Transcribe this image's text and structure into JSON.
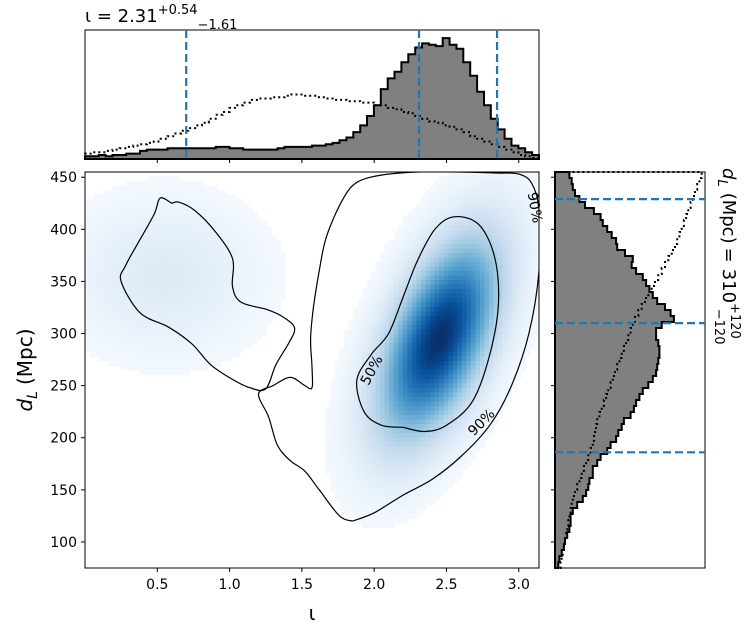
{
  "chart_data": {
    "type": "heatmap",
    "title": "",
    "xlabel": "ι",
    "ylabel_var": "d",
    "ylabel_sub": "L",
    "ylabel_unit": "(Mpc)",
    "xlim": [
      0.0,
      3.14
    ],
    "ylim": [
      75,
      455
    ],
    "xticks": [
      "0.5",
      "1.0",
      "1.5",
      "2.0",
      "2.5",
      "3.0"
    ],
    "xtick_values": [
      0.5,
      1.0,
      1.5,
      2.0,
      2.5,
      3.0
    ],
    "yticks": [
      "100",
      "150",
      "200",
      "250",
      "300",
      "350",
      "400",
      "450"
    ],
    "ytick_values": [
      100,
      150,
      200,
      250,
      300,
      350,
      400,
      450
    ],
    "colormap": "Blues",
    "density_peaks": [
      {
        "x": 2.45,
        "y": 295,
        "sx": 0.26,
        "sy": 60,
        "rho": 0.55,
        "w": 1.0
      },
      {
        "x": 0.55,
        "y": 355,
        "sx": 0.4,
        "sy": 45,
        "rho": 0.0,
        "w": 0.09
      }
    ],
    "contours": [
      {
        "label": "50%",
        "label_pos": [
          1.98,
          265
        ],
        "points": [
          [
            2.2,
            210
          ],
          [
            2.05,
            212
          ],
          [
            1.93,
            225
          ],
          [
            1.88,
            255
          ],
          [
            1.98,
            280
          ],
          [
            2.1,
            300
          ],
          [
            2.2,
            335
          ],
          [
            2.3,
            370
          ],
          [
            2.42,
            400
          ],
          [
            2.55,
            412
          ],
          [
            2.72,
            405
          ],
          [
            2.83,
            375
          ],
          [
            2.86,
            330
          ],
          [
            2.8,
            280
          ],
          [
            2.68,
            235
          ],
          [
            2.5,
            212
          ],
          [
            2.35,
            206
          ],
          [
            2.2,
            210
          ]
        ]
      },
      {
        "label": "90%",
        "label_pos": [
          2.74,
          215
        ],
        "points": [
          [
            1.85,
            120
          ],
          [
            1.76,
            125
          ],
          [
            1.62,
            150
          ],
          [
            1.52,
            168
          ],
          [
            1.42,
            178
          ],
          [
            1.33,
            193
          ],
          [
            1.27,
            220
          ],
          [
            1.2,
            242
          ],
          [
            1.3,
            250
          ],
          [
            1.42,
            258
          ],
          [
            1.52,
            250
          ],
          [
            1.57,
            248
          ],
          [
            1.57,
            268
          ],
          [
            1.56,
            295
          ],
          [
            1.58,
            325
          ],
          [
            1.62,
            360
          ],
          [
            1.67,
            393
          ],
          [
            1.78,
            428
          ],
          [
            1.88,
            445
          ],
          [
            2.05,
            452
          ],
          [
            2.3,
            455
          ],
          [
            2.6,
            455
          ],
          [
            2.85,
            454
          ],
          [
            3.0,
            453
          ],
          [
            3.09,
            444
          ],
          [
            3.14,
            418
          ],
          [
            3.14,
            360
          ],
          [
            3.07,
            300
          ],
          [
            2.95,
            250
          ],
          [
            2.8,
            212
          ],
          [
            2.6,
            182
          ],
          [
            2.4,
            160
          ],
          [
            2.2,
            145
          ],
          [
            2.0,
            128
          ],
          [
            1.85,
            120
          ]
        ]
      },
      {
        "label": "",
        "points": [
          [
            0.6,
            425
          ],
          [
            0.52,
            430
          ],
          [
            0.48,
            415
          ],
          [
            0.38,
            390
          ],
          [
            0.28,
            365
          ],
          [
            0.25,
            350
          ],
          [
            0.38,
            320
          ],
          [
            0.58,
            306
          ],
          [
            0.74,
            290
          ],
          [
            0.87,
            270
          ],
          [
            1.02,
            256
          ],
          [
            1.14,
            248
          ],
          [
            1.25,
            247
          ],
          [
            1.32,
            270
          ],
          [
            1.41,
            291
          ],
          [
            1.45,
            305
          ],
          [
            1.38,
            315
          ],
          [
            1.26,
            323
          ],
          [
            1.08,
            330
          ],
          [
            1.02,
            345
          ],
          [
            1.02,
            372
          ],
          [
            0.9,
            398
          ],
          [
            0.76,
            418
          ],
          [
            0.65,
            426
          ],
          [
            0.6,
            425
          ]
        ]
      }
    ],
    "top_hist": {
      "label": "ι = 2.31",
      "median": "2.31",
      "plus": "+0.54",
      "minus": "−1.61",
      "quantile_lines": [
        0.7,
        2.31,
        2.85
      ],
      "bin_edges": [
        0.0,
        3.14
      ],
      "posterior": [
        2,
        2,
        3,
        2,
        3,
        3,
        4,
        4,
        6,
        7,
        7,
        7,
        8,
        8,
        8,
        8,
        8,
        8,
        8,
        9,
        9,
        8,
        8,
        7,
        7,
        7,
        7,
        7,
        8,
        9,
        9,
        9,
        9,
        10,
        10,
        11,
        12,
        14,
        16,
        20,
        25,
        32,
        40,
        52,
        60,
        65,
        72,
        78,
        83,
        86,
        85,
        84,
        90,
        85,
        82,
        72,
        62,
        50,
        40,
        30,
        22,
        15,
        10,
        8,
        5,
        3
      ],
      "prior": [
        4,
        5,
        5,
        6,
        7,
        8,
        9,
        10,
        11,
        12,
        13,
        15,
        17,
        19,
        21,
        23,
        25,
        27,
        30,
        33,
        35,
        38,
        40,
        42,
        44,
        45,
        45,
        46,
        46,
        47,
        48,
        48,
        47,
        47,
        46,
        45,
        44,
        44,
        43,
        43,
        42,
        42,
        40,
        40,
        38,
        37,
        35,
        34,
        32,
        30,
        28,
        27,
        25,
        24,
        22,
        20,
        17,
        15,
        13,
        11,
        9,
        7,
        5,
        3,
        2,
        1
      ],
      "ymax": 96
    },
    "right_hist": {
      "label": "d_L (Mpc) = 310",
      "var": "d",
      "sub": "L",
      "unit": "(Mpc)",
      "median": "310",
      "plus": "+120",
      "minus": "−120",
      "quantile_lines": [
        186,
        310,
        429
      ],
      "bin_edges": [
        75,
        455
      ],
      "posterior": [
        3,
        4,
        6,
        8,
        9,
        11,
        13,
        14,
        14,
        16,
        20,
        25,
        28,
        30,
        31,
        34,
        34,
        38,
        41,
        47,
        50,
        55,
        57,
        60,
        62,
        68,
        71,
        73,
        76,
        79,
        84,
        88,
        91,
        92,
        93,
        94,
        94,
        93,
        91,
        91,
        96,
        107,
        104,
        99,
        92,
        88,
        85,
        82,
        79,
        73,
        69,
        70,
        63,
        56,
        55,
        51,
        47,
        43,
        41,
        35,
        27,
        22,
        18,
        16,
        15,
        13
      ],
      "prior": [
        5,
        6,
        7,
        8,
        9,
        10,
        11,
        12,
        13,
        14,
        15,
        16,
        18,
        20,
        22,
        24,
        26,
        28,
        30,
        32,
        34,
        35,
        36,
        37,
        38,
        40,
        42,
        44,
        46,
        48,
        50,
        52,
        54,
        56,
        58,
        60,
        62,
        64,
        66,
        68,
        70,
        72,
        75,
        78,
        81,
        84,
        87,
        90,
        93,
        96,
        99,
        102,
        105,
        108,
        110,
        112,
        114,
        116,
        118,
        120,
        122,
        124,
        126,
        128,
        130,
        132
      ],
      "xmax": 135
    },
    "grid": false,
    "legend": "none"
  }
}
